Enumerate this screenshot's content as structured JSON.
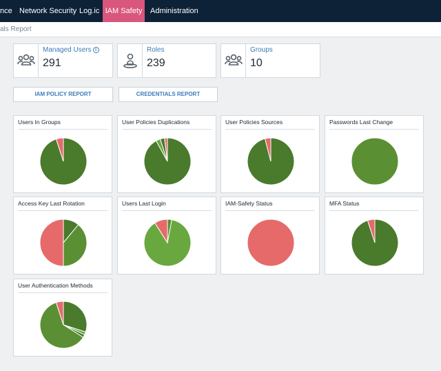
{
  "nav": {
    "items": [
      "nce",
      "Network Security",
      "Log.ic",
      "IAM Safety",
      "Administration"
    ],
    "active": "IAM Safety"
  },
  "breadcrumb": "als Report",
  "stats": [
    {
      "label": "Managed Users",
      "value": "291",
      "icon": "users-icon",
      "info": "i"
    },
    {
      "label": "Roles",
      "value": "239",
      "icon": "user-role-icon"
    },
    {
      "label": "Groups",
      "value": "10",
      "icon": "groups-icon"
    }
  ],
  "buttons": {
    "iam_policy": "IAM POLICY REPORT",
    "credentials": "CREDENTIALS REPORT"
  },
  "colors": {
    "dark_green": "#4a7a2c",
    "green": "#5b8f33",
    "light_green": "#69a83f",
    "red": "#e66a6a"
  },
  "charts": [
    {
      "title": "Users In Groups",
      "slices": [
        {
          "value": 95,
          "color": "#4a7a2c"
        },
        {
          "value": 5,
          "color": "#e66a6a"
        }
      ]
    },
    {
      "title": "User Policies Duplications",
      "slices": [
        {
          "value": 92,
          "color": "#4a7a2c"
        },
        {
          "value": 3,
          "color": "#69a83f"
        },
        {
          "value": 3,
          "color": "#4a7a2c"
        },
        {
          "value": 2,
          "color": "#e66a6a"
        }
      ]
    },
    {
      "title": "User Policies Sources",
      "slices": [
        {
          "value": 96,
          "color": "#4a7a2c"
        },
        {
          "value": 4,
          "color": "#e66a6a"
        }
      ]
    },
    {
      "title": "Passwords Last Change",
      "slices": [
        {
          "value": 100,
          "color": "#5b8f33"
        }
      ]
    },
    {
      "title": "Access Key Last Rotation",
      "slices": [
        {
          "value": 11,
          "color": "#4a7a2c"
        },
        {
          "value": 39,
          "color": "#5b8f33"
        },
        {
          "value": 50,
          "color": "#e66a6a"
        }
      ]
    },
    {
      "title": "Users Last Login",
      "slices": [
        {
          "value": 3,
          "color": "#5b8f33"
        },
        {
          "value": 88,
          "color": "#69a83f"
        },
        {
          "value": 9,
          "color": "#e66a6a"
        }
      ]
    },
    {
      "title": "IAM-Safety Status",
      "slices": [
        {
          "value": 100,
          "color": "#e66a6a"
        }
      ]
    },
    {
      "title": "MFA Status",
      "slices": [
        {
          "value": 95,
          "color": "#4a7a2c"
        },
        {
          "value": 5,
          "color": "#e66a6a"
        }
      ]
    },
    {
      "title": "User Authentication Methods",
      "slices": [
        {
          "value": 30,
          "color": "#4a7a2c"
        },
        {
          "value": 2,
          "color": "#69a83f"
        },
        {
          "value": 2,
          "color": "#4a7a2c"
        },
        {
          "value": 61,
          "color": "#5b8f33"
        },
        {
          "value": 5,
          "color": "#e66a6a"
        }
      ]
    }
  ]
}
